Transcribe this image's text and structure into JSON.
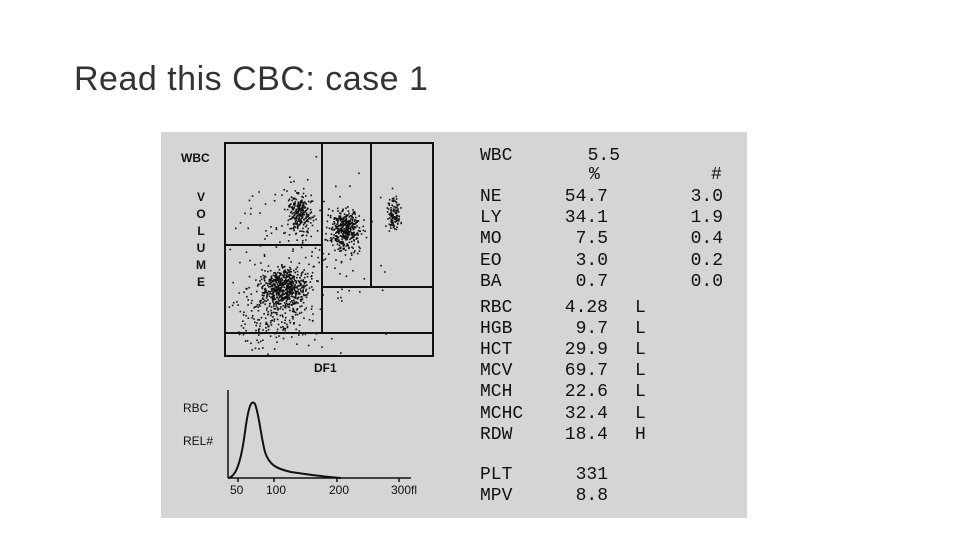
{
  "title": "Read this CBC: case 1",
  "printout": {
    "scatter": {
      "label": "WBC",
      "axis_y": "VOLUME",
      "axis_x": "DF1"
    },
    "histogram": {
      "label": "RBC",
      "y_label": "REL#",
      "x_labels": [
        "50",
        "100",
        "200",
        "300",
        "fl"
      ]
    },
    "wbc": {
      "name": "WBC",
      "value": "5.5"
    },
    "headers": {
      "percent": "%",
      "count": "#"
    },
    "differential": [
      {
        "name": "NE",
        "percent": "54.7",
        "count": "3.0"
      },
      {
        "name": "LY",
        "percent": "34.1",
        "count": "1.9"
      },
      {
        "name": "MO",
        "percent": "7.5",
        "count": "0.4"
      },
      {
        "name": "EO",
        "percent": "3.0",
        "count": "0.2"
      },
      {
        "name": "BA",
        "percent": "0.7",
        "count": "0.0"
      }
    ],
    "rbc_indices": [
      {
        "name": "RBC",
        "value": "4.28",
        "flag": "L"
      },
      {
        "name": "HGB",
        "value": "9.7",
        "flag": "L"
      },
      {
        "name": "HCT",
        "value": "29.9",
        "flag": "L"
      },
      {
        "name": "MCV",
        "value": "69.7",
        "flag": "L"
      },
      {
        "name": "MCH",
        "value": "22.6",
        "flag": "L"
      },
      {
        "name": "MCHC",
        "value": "32.4",
        "flag": "L"
      },
      {
        "name": "RDW",
        "value": "18.4",
        "flag": "H"
      }
    ],
    "platelets": [
      {
        "name": "PLT",
        "value": "331"
      },
      {
        "name": "MPV",
        "value": "8.8"
      }
    ]
  }
}
